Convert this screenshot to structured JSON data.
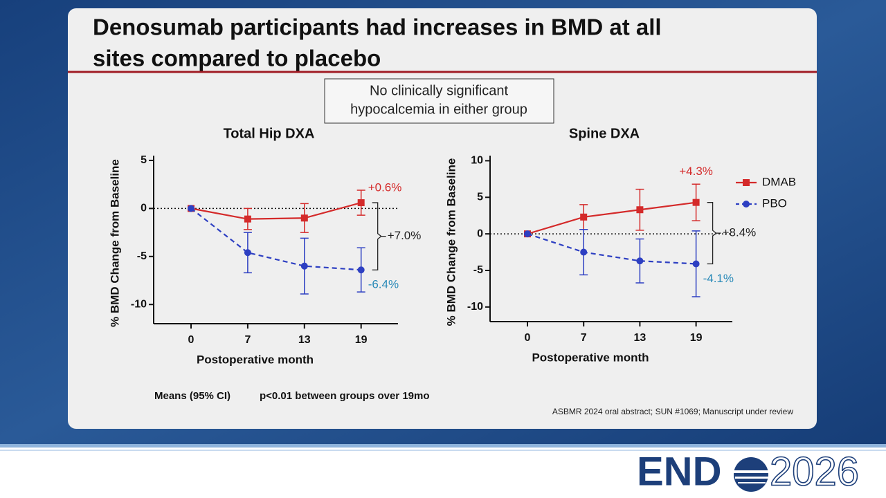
{
  "title": [
    "Denosumab participants had increases in BMD at all",
    "sites compared to placebo"
  ],
  "note_box": [
    "No clinically significant",
    "hypocalcemia in either group"
  ],
  "footnote": [
    "Means (95% CI)",
    "p<0.01 between groups over 19mo"
  ],
  "citation": "ASBMR 2024 oral abstract; SUN #1069; Manuscript under review",
  "logo": {
    "left": "END",
    "right": "2026"
  },
  "chart_data": [
    {
      "type": "line",
      "title": "Total Hip DXA",
      "xlabel": "Postoperative month",
      "ylabel": "% BMD Change from Baseline",
      "categories": [
        "0",
        "7",
        "13",
        "19"
      ],
      "ylim": [
        -12,
        5.5
      ],
      "yticks": [
        5,
        0,
        -5,
        -10
      ],
      "hline": 0,
      "legend": false,
      "difference_label": "+7.0%",
      "series": [
        {
          "color": "#d42a2a",
          "dash": false,
          "marker": "square",
          "values": [
            0,
            -1.1,
            -1.0,
            0.6
          ],
          "errors": [
            null,
            1.1,
            1.5,
            1.3
          ],
          "end_label": "+0.6%",
          "end_label_color": "#d42a2a"
        },
        {
          "color": "#2d3fc2",
          "dash": true,
          "marker": "circle",
          "values": [
            0,
            -4.6,
            -6.0,
            -6.4
          ],
          "errors": [
            null,
            2.1,
            2.9,
            2.3
          ],
          "end_label": "-6.4%",
          "end_label_color": "#2a8ab8"
        }
      ]
    },
    {
      "type": "line",
      "title": "Spine DXA",
      "xlabel": "Postoperative month",
      "ylabel": "% BMD Change from Baseline",
      "categories": [
        "0",
        "7",
        "13",
        "19"
      ],
      "ylim": [
        -12,
        10.7
      ],
      "yticks": [
        10,
        5,
        0,
        -5,
        -10
      ],
      "hline": 0,
      "legend": "right",
      "difference_label": "+8.4%",
      "series": [
        {
          "name": "DMAB",
          "color": "#d42a2a",
          "dash": false,
          "marker": "square",
          "values": [
            0,
            2.3,
            3.3,
            4.3
          ],
          "errors": [
            null,
            1.7,
            2.8,
            2.5
          ],
          "end_label": "+4.3%",
          "end_label_color": "#d42a2a"
        },
        {
          "name": "PBO",
          "color": "#2d3fc2",
          "dash": true,
          "marker": "circle",
          "values": [
            0,
            -2.5,
            -3.7,
            -4.1
          ],
          "errors": [
            null,
            3.1,
            3.0,
            4.5
          ],
          "end_label": "-4.1%",
          "end_label_color": "#2a8ab8"
        }
      ]
    }
  ]
}
